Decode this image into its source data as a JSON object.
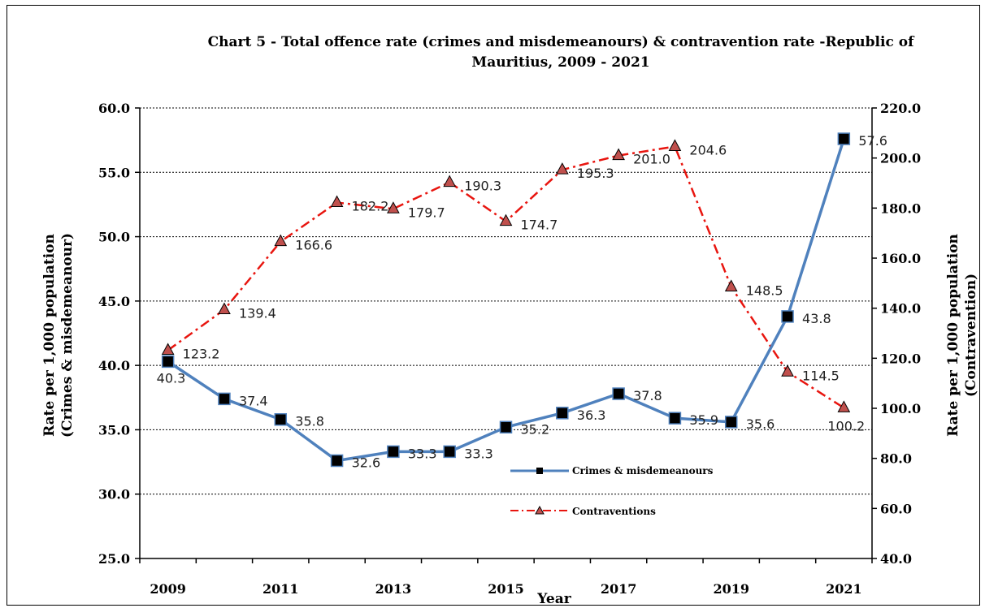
{
  "chart_data": {
    "type": "line",
    "title_line1": "Chart 5 -  Total offence rate (crimes and misdemeanours) & contravention rate -Republic of",
    "title_line2": "Mauritius,  2009 - 2021",
    "xlabel": "Year",
    "ylabel_left_line1": "Rate per 1,000 population",
    "ylabel_left_line2": "(Crimes & misdemeanour)",
    "ylabel_right_line1": "Rate per 1,000 population",
    "ylabel_right_line2": "(Contravention)",
    "x_tick_labels": [
      "2009",
      "2011",
      "2013",
      "2015",
      "2017",
      "2019",
      "2021"
    ],
    "y_left_ticks": [
      "25.0",
      "30.0",
      "35.0",
      "40.0",
      "45.0",
      "50.0",
      "55.0",
      "60.0"
    ],
    "y_right_ticks": [
      "40.0",
      "60.0",
      "80.0",
      "100.0",
      "120.0",
      "140.0",
      "160.0",
      "180.0",
      "200.0",
      "220.0"
    ],
    "ylim_left": [
      25,
      60
    ],
    "ylim_right": [
      40,
      220
    ],
    "grid": true,
    "x": [
      2009,
      2010,
      2011,
      2012,
      2013,
      2014,
      2015,
      2016,
      2017,
      2018,
      2019,
      2020,
      2021
    ],
    "series": [
      {
        "name": "Crimes & misdemeanours",
        "axis": "left",
        "color": "#4f81bd",
        "marker": "square",
        "values": [
          40.3,
          37.4,
          35.8,
          32.6,
          33.3,
          33.3,
          35.2,
          36.3,
          37.8,
          35.9,
          35.6,
          43.8,
          57.6
        ],
        "labels": [
          "40.3",
          "37.4",
          "35.8",
          "32.6",
          "33.3",
          "33.3",
          "35.2",
          "36.3",
          "37.8",
          "35.9",
          "35.6",
          "43.8",
          "57.6"
        ]
      },
      {
        "name": "Contraventions",
        "axis": "right",
        "color": "#e8150f",
        "marker": "triangle",
        "values": [
          123.2,
          139.4,
          166.6,
          182.2,
          179.7,
          190.3,
          174.7,
          195.3,
          201.0,
          204.6,
          148.5,
          114.5,
          100.2
        ],
        "labels": [
          "123.2",
          "139.4",
          "166.6",
          "182.2",
          "179.7",
          "190.3",
          "174.7",
          "195.3",
          "201.0",
          "204.6",
          "148.5",
          "114.5",
          "100.2"
        ]
      }
    ],
    "legend_position": "center-right inside plot"
  }
}
